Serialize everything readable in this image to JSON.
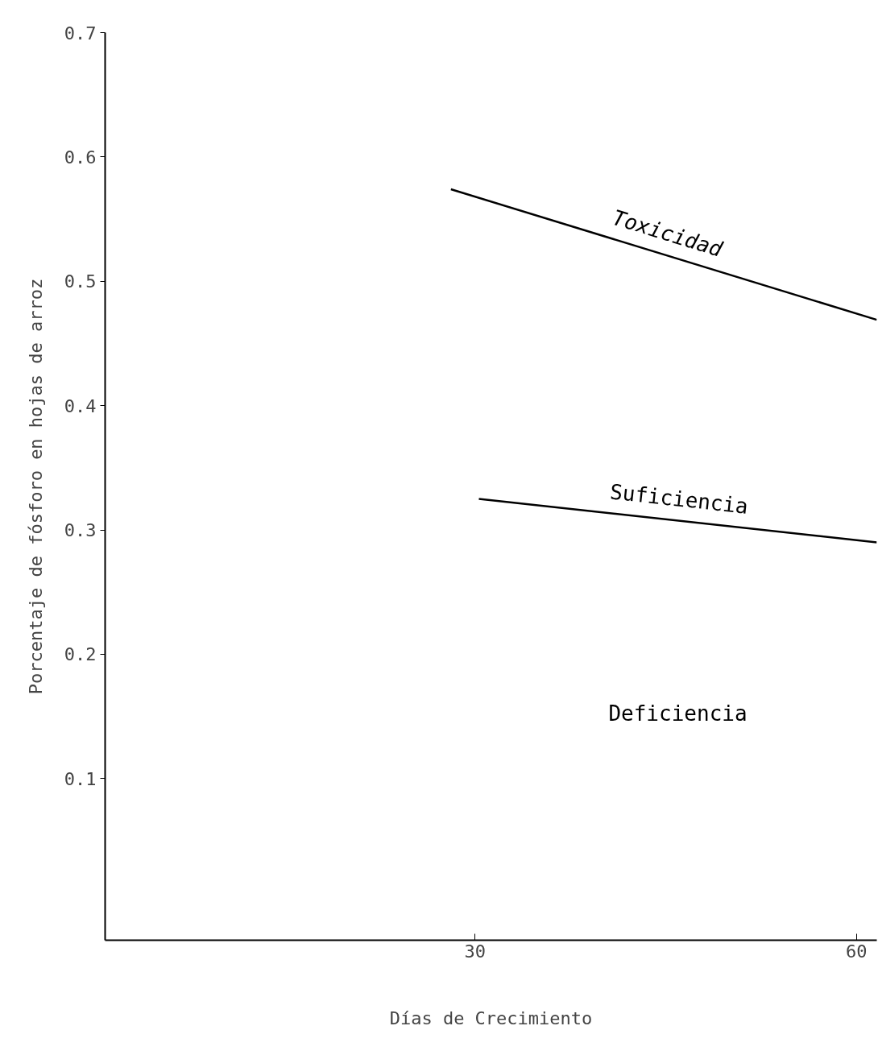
{
  "chart_data": {
    "type": "line",
    "xlabel": "Días de Crecimiento",
    "ylabel": "Porcentaje de fósforo en hojas de arroz",
    "xlim": [
      0.9,
      61.6
    ],
    "ylim": [
      -0.03,
      0.7
    ],
    "xticks": [
      30,
      60
    ],
    "yticks": [
      0.1,
      0.2,
      0.3,
      0.4,
      0.5,
      0.6,
      0.7
    ],
    "series": [
      {
        "color": "#000000",
        "x": [
          28.1,
          61.6
        ],
        "values": [
          0.574,
          0.469
        ]
      },
      {
        "color": "#000000",
        "x": [
          30.3,
          61.6
        ],
        "values": [
          0.325,
          0.29
        ]
      }
    ],
    "annotations": [
      "Toxicidad",
      "Suficiencia",
      "Deficiencia"
    ],
    "grid": false,
    "marker": "none",
    "line_style": "solid"
  }
}
